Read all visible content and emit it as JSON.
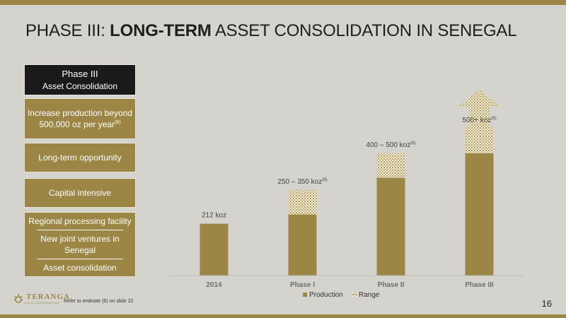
{
  "slide": {
    "title_pre": "PHASE III: ",
    "title_bold": "LONG-TERM",
    "title_post": " ASSET CONSOLIDATION IN SENEGAL",
    "page_number": "16",
    "endnote": "Refer to endnote (6) on slide 22",
    "logo_text": "TERANGA",
    "logo_sub": "GOLD CORPORATION"
  },
  "sidebar": {
    "header_line1": "Phase III",
    "header_line2": "Asset Consolidation",
    "box1_line1": "Increase production beyond",
    "box1_line2": "500,000 oz per year",
    "box1_sup": "(6)",
    "box2": "Long-term opportunity",
    "box3": "Capital intensive",
    "box4_items": [
      "Regional processing facility",
      "New joint ventures in Senegal",
      "Asset consolidation"
    ]
  },
  "colors": {
    "gold": "#9b8646",
    "background": "#d4d3ce",
    "dark": "#1a1a1a"
  },
  "chart_data": {
    "type": "bar",
    "stacked": true,
    "categories": [
      "2014",
      "Phase I",
      "Phase II",
      "Phase III"
    ],
    "series": [
      {
        "name": "Production",
        "values": [
          212,
          250,
          400,
          500
        ]
      },
      {
        "name": "Range",
        "values": [
          0,
          100,
          100,
          110
        ]
      }
    ],
    "data_labels": [
      {
        "text": "212 koz",
        "sup": ""
      },
      {
        "text": "250 – 350 koz",
        "sup": "(6)"
      },
      {
        "text": "400 – 500 koz",
        "sup": "(6)"
      },
      {
        "text": "500+ koz",
        "sup": "(6)"
      }
    ],
    "phase3_arrow": true,
    "ylim": [
      0,
      780
    ],
    "legend_position": "bottom"
  }
}
